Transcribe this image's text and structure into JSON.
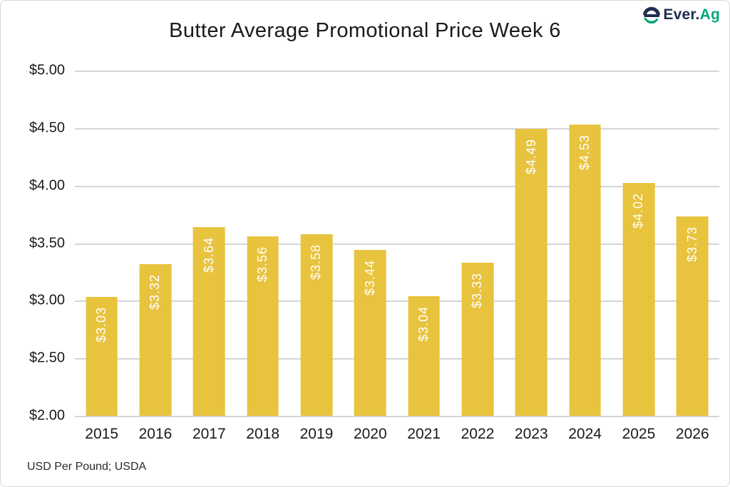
{
  "header": {
    "logo": {
      "ever": "Ever.",
      "ag": "Ag",
      "navy": "#1e2d50",
      "green": "#00a878"
    }
  },
  "footnote": "USD Per Pound; USDA",
  "chart_data": {
    "type": "bar",
    "title": "Butter Average Promotional Price Week 6",
    "categories": [
      "2015",
      "2016",
      "2017",
      "2018",
      "2019",
      "2020",
      "2021",
      "2022",
      "2023",
      "2024",
      "2025",
      "2026"
    ],
    "values": [
      3.03,
      3.32,
      3.64,
      3.56,
      3.58,
      3.44,
      3.04,
      3.33,
      4.49,
      4.53,
      4.02,
      3.73
    ],
    "bar_labels": [
      "$3.03",
      "$3.32",
      "$3.64",
      "$3.56",
      "$3.58",
      "$3.44",
      "$3.04",
      "$3.33",
      "$4.49",
      "$4.53",
      "$4.02",
      "$3.73"
    ],
    "xlabel": "",
    "ylabel": "USD Per Pound",
    "ylim": [
      2.0,
      5.0
    ],
    "yticks": [
      5.0,
      4.5,
      4.0,
      3.5,
      3.0,
      2.5,
      2.0
    ],
    "ytick_labels": [
      "$5.00",
      "$4.50",
      "$4.00",
      "$3.50",
      "$3.00",
      "$2.50",
      "$2.00"
    ],
    "grid": "on",
    "legend": "none",
    "bar_color": "#e8c33e",
    "bar_label_color": "#ffffff",
    "grid_color": "#d5d5d5"
  }
}
